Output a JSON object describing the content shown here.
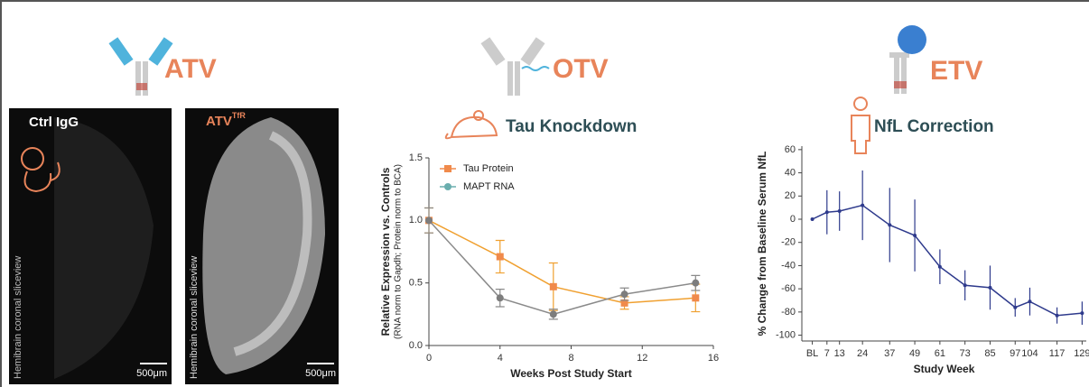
{
  "panels": [
    {
      "heading": "ATV",
      "images": [
        {
          "label": "Ctrl IgG",
          "side_label": "Hemibrain coronal sliceview",
          "scale": "500μm"
        },
        {
          "label": "ATV",
          "label_sup": "TfR",
          "side_label": "Hemibrain coronal sliceview",
          "scale": "500μm"
        }
      ]
    },
    {
      "heading": "OTV",
      "subheading": "Tau Knockdown"
    },
    {
      "heading": "ETV",
      "subheading": "NfL Correction"
    }
  ],
  "chart_data": [
    {
      "type": "line",
      "ylabel": "Relative Expression vs. Controls",
      "ylabel_note": "(RNA norm to Gapdh; Protein norm to BCA)",
      "xlabel": "Weeks Post Study Start",
      "x": [
        0,
        4,
        7,
        11,
        15
      ],
      "xlim": [
        0,
        16
      ],
      "xticks": [
        0,
        4,
        8,
        12,
        16
      ],
      "ylim": [
        0,
        1.5
      ],
      "yticks": [
        {
          "value": 0,
          "label": "0.0"
        },
        0.5,
        {
          "value": 1,
          "label": "1.0"
        },
        {
          "value": 1.5,
          "label": "1.5"
        }
      ],
      "legend": "upper left",
      "series": [
        {
          "name": "Tau Protein",
          "color": "#f0a030",
          "marker_color": "#f08a4b",
          "marker": "square",
          "values": [
            1.0,
            0.71,
            0.47,
            0.34,
            0.38
          ],
          "errors": [
            0.1,
            0.13,
            0.19,
            0.05,
            0.11
          ]
        },
        {
          "name": "MAPT RNA",
          "color": "#8a8a8a",
          "marker_color": "#6aaeae",
          "marker": "circle",
          "values": [
            1.0,
            0.38,
            0.25,
            0.41,
            0.5
          ],
          "errors": [
            0.1,
            0.07,
            0.04,
            0.05,
            0.06
          ]
        }
      ]
    },
    {
      "type": "line",
      "ylabel": "% Change from Baseline Serum NfL",
      "xlabel": "Study Week",
      "x": [
        0,
        7,
        13,
        24,
        37,
        49,
        61,
        73,
        85,
        97,
        104,
        117,
        129
      ],
      "xlim": [
        -5,
        131
      ],
      "xticks": [
        {
          "value": 0,
          "label": "BL"
        },
        7,
        13,
        24,
        37,
        49,
        61,
        73,
        85,
        97,
        104,
        117,
        129
      ],
      "ylim": [
        -105,
        63
      ],
      "yticks": [
        -100,
        -80,
        -60,
        -40,
        -20,
        0,
        20,
        40,
        60
      ],
      "series": [
        {
          "color": "#2e3a8c",
          "marker": "dot",
          "values": [
            0,
            6,
            7,
            12,
            -5,
            -14,
            -41,
            -57,
            -59,
            -76,
            -71,
            -83,
            -81
          ],
          "errors": [
            0,
            19,
            17,
            30,
            32,
            31,
            15,
            13,
            19,
            8,
            12,
            7,
            10
          ]
        }
      ]
    }
  ]
}
